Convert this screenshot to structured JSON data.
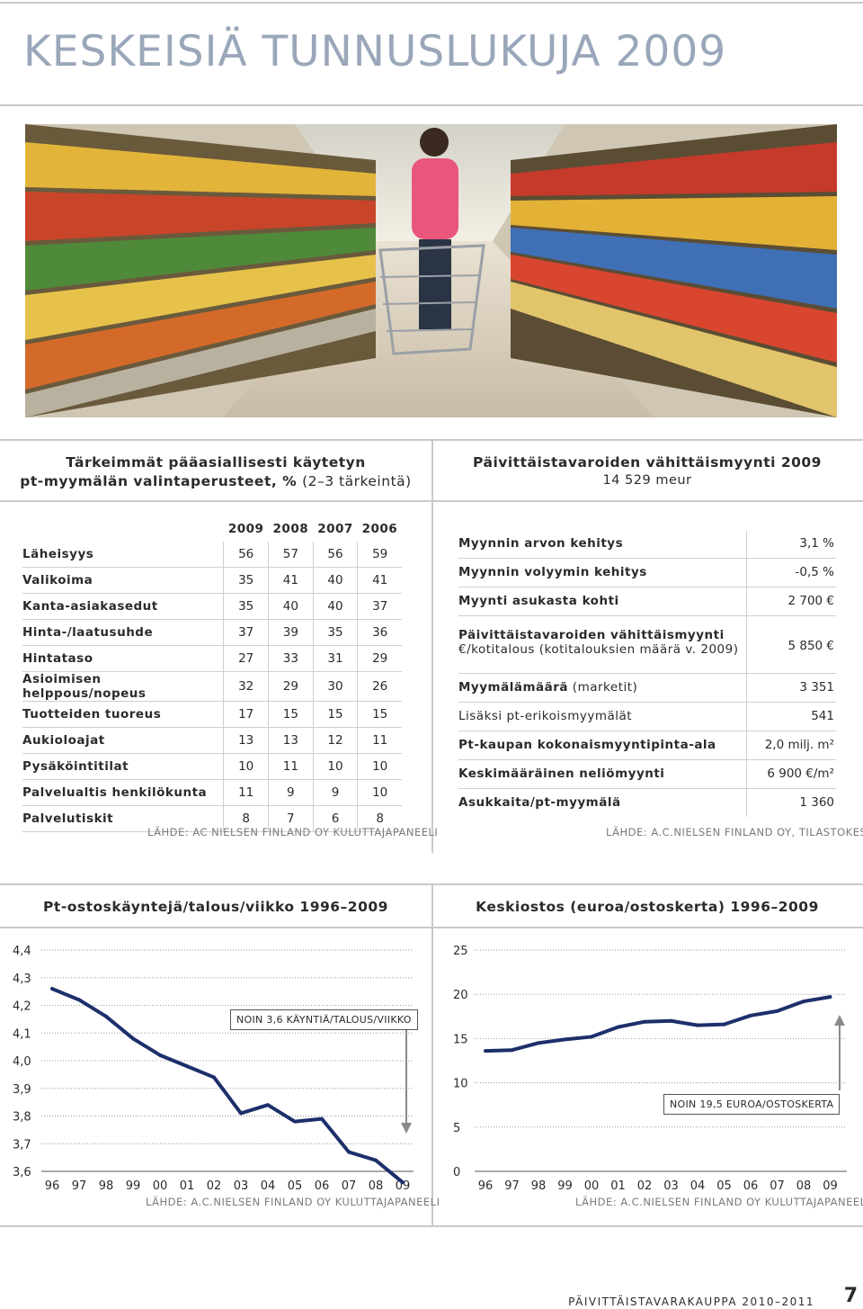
{
  "page_title": "KESKEISIÄ TUNNUSLUKUJA 2009",
  "photo": {
    "icon": "supermarket-photo"
  },
  "left_table": {
    "heading_line1": "Tärkeimmät pääasiallisesti käytetyn",
    "heading_line2": "pt-myymälän valintaperusteet, %",
    "heading_note": "(2–3 tärkeintä)",
    "years": [
      "2009",
      "2008",
      "2007",
      "2006"
    ],
    "rows": [
      {
        "label": "Läheisyys",
        "values": [
          "56",
          "57",
          "56",
          "59"
        ]
      },
      {
        "label": "Valikoima",
        "values": [
          "35",
          "41",
          "40",
          "41"
        ]
      },
      {
        "label": "Kanta-asiakasedut",
        "values": [
          "35",
          "40",
          "40",
          "37"
        ]
      },
      {
        "label": "Hinta-/laatusuhde",
        "values": [
          "37",
          "39",
          "35",
          "36"
        ]
      },
      {
        "label": "Hintataso",
        "values": [
          "27",
          "33",
          "31",
          "29"
        ]
      },
      {
        "label": "Asioimisen helppous/nopeus",
        "values": [
          "32",
          "29",
          "30",
          "26"
        ]
      },
      {
        "label": "Tuotteiden tuoreus",
        "values": [
          "17",
          "15",
          "15",
          "15"
        ]
      },
      {
        "label": "Aukioloajat",
        "values": [
          "13",
          "13",
          "12",
          "11"
        ]
      },
      {
        "label": "Pysäköintitilat",
        "values": [
          "10",
          "11",
          "10",
          "10"
        ]
      },
      {
        "label": "Palvelualtis henkilökunta",
        "values": [
          "11",
          "9",
          "9",
          "10"
        ]
      },
      {
        "label": "Palvelutiskit",
        "values": [
          "8",
          "7",
          "6",
          "8"
        ]
      }
    ],
    "source": "LÄHDE: AC NIELSEN FINLAND OY KULUTTAJAPANEELI"
  },
  "right_table": {
    "heading": "Päivittäistavaroiden vähittäismyynti 2009",
    "subheading": "14 529 meur",
    "rows": [
      {
        "label_bold": "Myynnin arvon kehitys",
        "label_norm": "",
        "value": "3,1 %"
      },
      {
        "label_bold": "Myynnin volyymin kehitys",
        "label_norm": "",
        "value": "-0,5 %"
      },
      {
        "label_bold": "Myynti asukasta kohti",
        "label_norm": "",
        "value": "2 700 €"
      },
      {
        "label_bold": "Päivittäistavaroiden vähittäismyynti",
        "label_norm": "€/kotitalous (kotitalouksien määrä v. 2009)",
        "value": "5 850 €"
      },
      {
        "label_bold": "Myymälämäärä",
        "label_norm": " (marketit)",
        "value": "3 351"
      },
      {
        "label_bold": "",
        "label_norm": "Lisäksi pt-erikoismyymälät",
        "value": "541"
      },
      {
        "label_bold": "Pt-kaupan kokonaismyyntipinta-ala",
        "label_norm": "",
        "value": "2,0 milj. m²"
      },
      {
        "label_bold": "Keskimääräinen neliömyynti",
        "label_norm": "",
        "value": "6 900  €/m²"
      },
      {
        "label_bold": "Asukkaita/pt-myymälä",
        "label_norm": "",
        "value": "1 360"
      }
    ],
    "source": "LÄHDE: A.C.NIELSEN FINLAND OY, TILASTOKESKUS"
  },
  "chart_data": [
    {
      "type": "line",
      "title": "Pt-ostoskäyntejä/talous/viikko 1996–2009",
      "categories": [
        "96",
        "97",
        "98",
        "99",
        "00",
        "01",
        "02",
        "03",
        "04",
        "05",
        "06",
        "07",
        "08",
        "09"
      ],
      "x": [
        1996,
        1997,
        1998,
        1999,
        2000,
        2001,
        2002,
        2003,
        2004,
        2005,
        2006,
        2007,
        2008,
        2009
      ],
      "values": [
        4.26,
        4.22,
        4.16,
        4.08,
        4.02,
        3.98,
        3.94,
        3.81,
        3.84,
        3.78,
        3.79,
        3.67,
        3.64,
        3.56
      ],
      "yticks": [
        "4,4",
        "4,3",
        "4,2",
        "4,1",
        "4,0",
        "3,9",
        "3,8",
        "3,7",
        "3,6"
      ],
      "ylim": [
        3.6,
        4.4
      ],
      "line_color": "#1d2f6b",
      "annotation": "NOIN 3,6 KÄYNTIÄ/TALOUS/VIIKKO",
      "source": "LÄHDE: A.C.NIELSEN FINLAND OY KULUTTAJAPANEELI"
    },
    {
      "type": "line",
      "title": "Keskiostos (euroa/ostoskerta) 1996–2009",
      "categories": [
        "96",
        "97",
        "98",
        "99",
        "00",
        "01",
        "02",
        "03",
        "04",
        "05",
        "06",
        "07",
        "08",
        "09"
      ],
      "x": [
        1996,
        1997,
        1998,
        1999,
        2000,
        2001,
        2002,
        2003,
        2004,
        2005,
        2006,
        2007,
        2008,
        2009
      ],
      "values": [
        13.6,
        13.7,
        14.5,
        14.9,
        15.2,
        16.3,
        16.9,
        17.0,
        16.5,
        16.6,
        17.6,
        18.1,
        19.2,
        19.7
      ],
      "yticks": [
        "25",
        "20",
        "15",
        "10",
        "5",
        "0"
      ],
      "ylim": [
        0,
        25
      ],
      "line_color": "#1d2f6b",
      "annotation": "NOIN 19,5 EUROA/OSTOSKERTA",
      "source": "LÄHDE: A.C.NIELSEN FINLAND OY KULUTTAJAPANEELI"
    }
  ],
  "footer": {
    "text": "PÄIVITTÄISTAVARAKAUPPA 2010–2011",
    "page": "7"
  }
}
